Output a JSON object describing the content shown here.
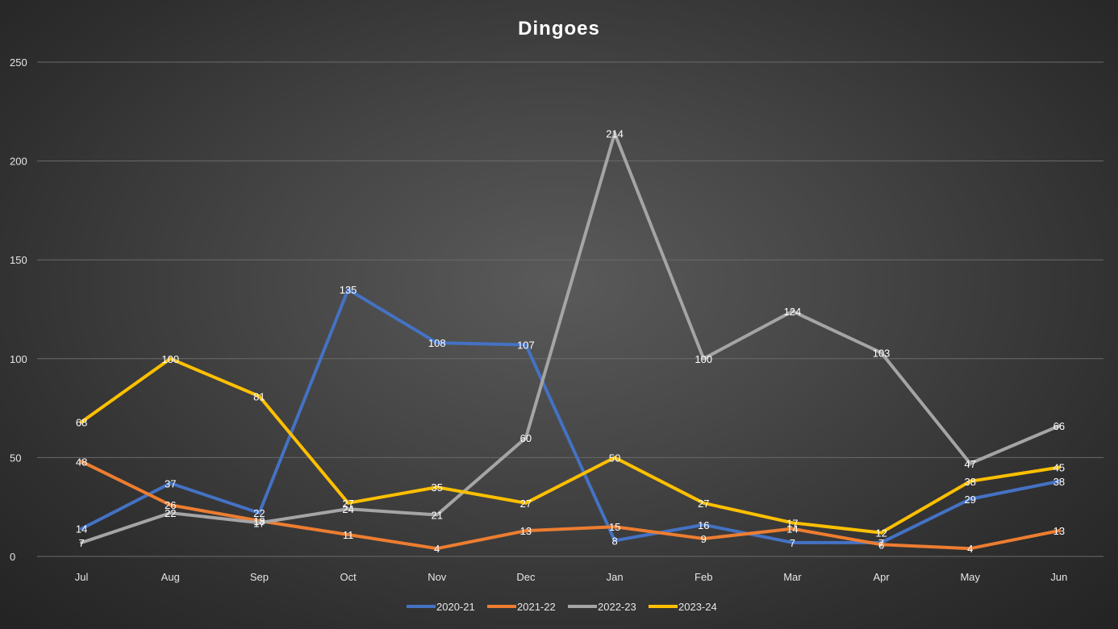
{
  "chart_data": {
    "type": "line",
    "title": "Dingoes",
    "xlabel": "",
    "ylabel": "",
    "ylim": [
      0,
      250
    ],
    "yticks": [
      0,
      50,
      100,
      150,
      200,
      250
    ],
    "grid": true,
    "legend_position": "bottom",
    "categories": [
      "Jul",
      "Aug",
      "Sep",
      "Oct",
      "Nov",
      "Dec",
      "Jan",
      "Feb",
      "Mar",
      "Apr",
      "May",
      "Jun"
    ],
    "series": [
      {
        "name": "2020-21",
        "color": "#4472c4",
        "values": [
          14,
          37,
          22,
          135,
          108,
          107,
          8,
          16,
          7,
          7,
          29,
          38
        ]
      },
      {
        "name": "2021-22",
        "color": "#ed7d31",
        "values": [
          48,
          26,
          18,
          11,
          4,
          13,
          15,
          9,
          14,
          6,
          4,
          13
        ]
      },
      {
        "name": "2022-23",
        "color": "#a5a5a5",
        "values": [
          7,
          22,
          17,
          24,
          21,
          60,
          214,
          100,
          124,
          103,
          47,
          66
        ]
      },
      {
        "name": "2023-24",
        "color": "#ffc000",
        "values": [
          68,
          100,
          81,
          27,
          35,
          27,
          50,
          27,
          17,
          12,
          38,
          45
        ]
      }
    ]
  }
}
